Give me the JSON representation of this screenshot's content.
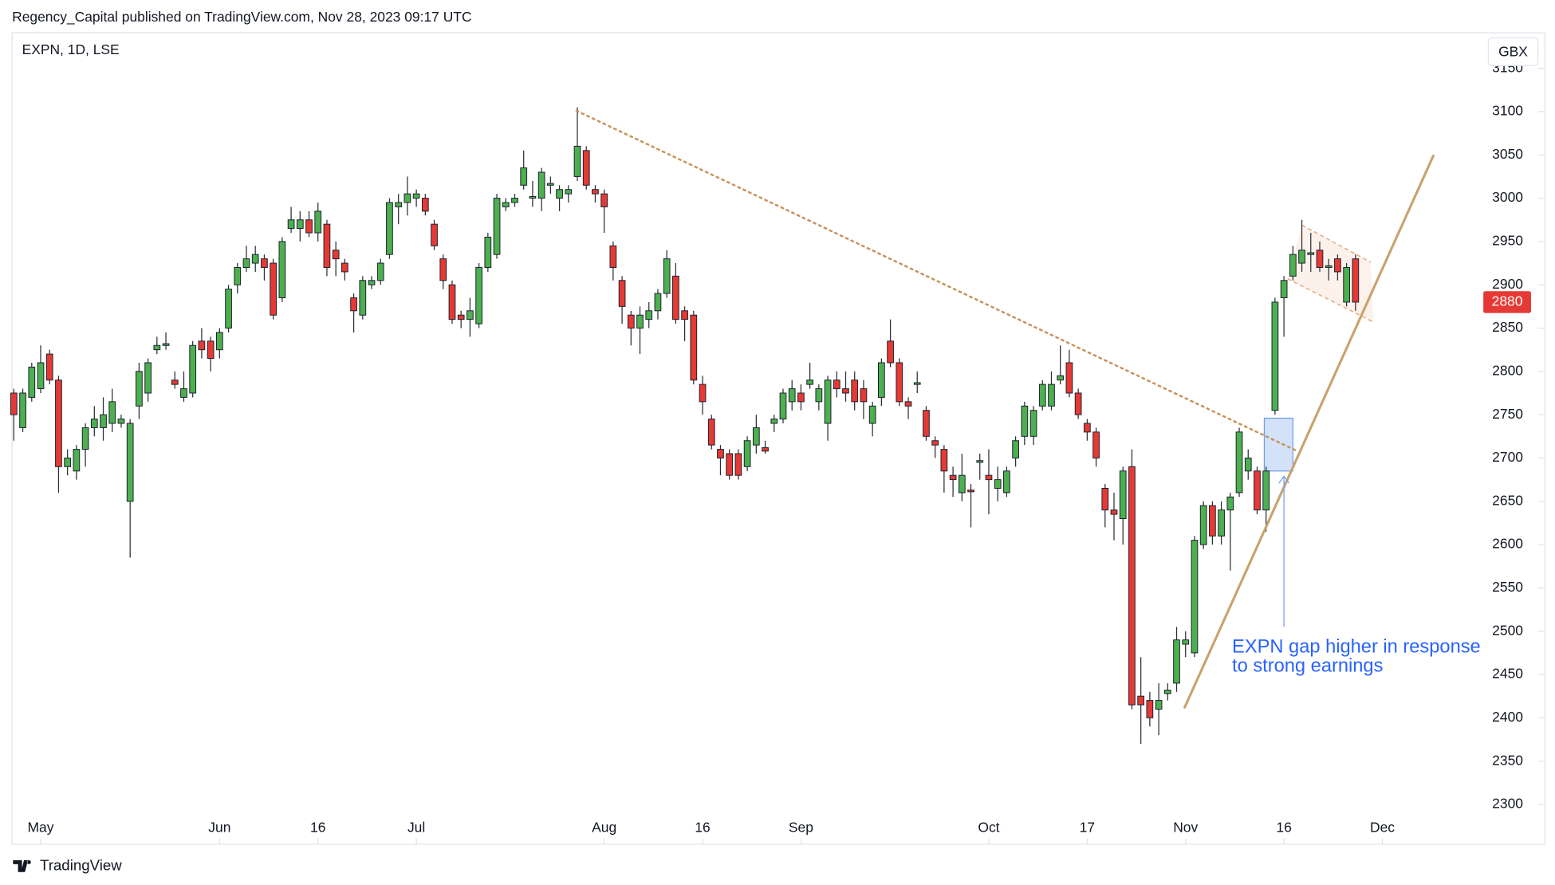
{
  "header": {
    "text": "Regency_Capital published on TradingView.com, Nov 28, 2023 09:17 UTC"
  },
  "chart_data": {
    "type": "candlestick",
    "title": "EXPN, 1D, LSE",
    "currency": "GBX",
    "up_color": "#4caf50",
    "down_color": "#e53935",
    "open": [
      2775,
      2735,
      2770,
      2780,
      2820,
      2790,
      2690,
      2685,
      2710,
      2735,
      2735,
      2740,
      2740,
      2650,
      2760,
      2775,
      2825,
      2830,
      2790,
      2770,
      2775,
      2835,
      2835,
      2825,
      2850,
      2900,
      2920,
      2925,
      2930,
      2925,
      2885,
      2965,
      2965,
      2975,
      2960,
      2970,
      2940,
      2925,
      2885,
      2865,
      2900,
      2905,
      2935,
      2990,
      2995,
      3000,
      3000,
      2970,
      2930,
      2900,
      2865,
      2860,
      2855,
      2920,
      2935,
      2990,
      2995,
      3015,
      3000,
      3000,
      3015,
      3000,
      3005,
      3025,
      3055,
      3010,
      3005,
      2945,
      2905,
      2865,
      2850,
      2860,
      2870,
      2890,
      2910,
      2870,
      2865,
      2785,
      2745,
      2710,
      2705,
      2705,
      2690,
      2715,
      2712,
      2740,
      2745,
      2765,
      2775,
      2785,
      2765,
      2740,
      2790,
      2780,
      2790,
      2780,
      2740,
      2770,
      2835,
      2810,
      2765,
      2785,
      2755,
      2720,
      2710,
      2680,
      2660,
      2663,
      2695,
      2680,
      2665,
      2660,
      2700,
      2725,
      2725,
      2760,
      2760,
      2790,
      2810,
      2775,
      2740,
      2730,
      2665,
      2640,
      2630,
      2690,
      2425,
      2420,
      2410,
      2428,
      2440,
      2485,
      2475,
      2600,
      2645,
      2610,
      2640,
      2660,
      2685,
      2685,
      2640,
      2755,
      2885,
      2910,
      2925,
      2935,
      2940,
      2920,
      2930,
      2880,
      2930
    ],
    "high": [
      2780,
      2780,
      2810,
      2830,
      2825,
      2795,
      2710,
      2715,
      2740,
      2760,
      2770,
      2780,
      2750,
      2745,
      2810,
      2815,
      2840,
      2845,
      2800,
      2800,
      2835,
      2850,
      2840,
      2850,
      2900,
      2925,
      2945,
      2945,
      2935,
      2930,
      2955,
      2990,
      2985,
      2985,
      2995,
      2975,
      2950,
      2930,
      2890,
      2910,
      2910,
      2930,
      3000,
      3005,
      3025,
      3010,
      3005,
      2975,
      2935,
      2905,
      2870,
      2885,
      2925,
      2960,
      3005,
      3000,
      3005,
      3055,
      3020,
      3035,
      3025,
      3015,
      3015,
      3105,
      3060,
      3015,
      3010,
      2950,
      2910,
      2870,
      2875,
      2880,
      2895,
      2940,
      2925,
      2875,
      2870,
      2795,
      2750,
      2715,
      2710,
      2710,
      2725,
      2750,
      2720,
      2750,
      2780,
      2790,
      2785,
      2810,
      2785,
      2795,
      2800,
      2800,
      2800,
      2790,
      2765,
      2815,
      2860,
      2815,
      2770,
      2800,
      2760,
      2725,
      2715,
      2690,
      2705,
      2670,
      2705,
      2710,
      2690,
      2690,
      2725,
      2765,
      2760,
      2790,
      2800,
      2830,
      2825,
      2780,
      2745,
      2735,
      2670,
      2660,
      2690,
      2710,
      2470,
      2430,
      2440,
      2440,
      2505,
      2500,
      2610,
      2650,
      2650,
      2650,
      2660,
      2735,
      2710,
      2690,
      2690,
      2885,
      2910,
      2945,
      2975,
      2960,
      2950,
      2930,
      2935,
      2925,
      2935
    ],
    "low": [
      2720,
      2730,
      2765,
      2775,
      2785,
      2660,
      2680,
      2675,
      2690,
      2725,
      2720,
      2730,
      2735,
      2585,
      2745,
      2765,
      2820,
      2825,
      2780,
      2765,
      2770,
      2815,
      2800,
      2815,
      2845,
      2890,
      2915,
      2915,
      2905,
      2860,
      2880,
      2960,
      2950,
      2955,
      2950,
      2910,
      2910,
      2905,
      2845,
      2860,
      2895,
      2900,
      2930,
      2970,
      2980,
      2990,
      2980,
      2940,
      2895,
      2855,
      2850,
      2840,
      2850,
      2915,
      2930,
      2985,
      2990,
      3010,
      2990,
      2985,
      3005,
      2985,
      2995,
      3020,
      3010,
      2995,
      2960,
      2905,
      2855,
      2830,
      2820,
      2850,
      2860,
      2885,
      2855,
      2835,
      2785,
      2750,
      2710,
      2680,
      2675,
      2675,
      2685,
      2705,
      2705,
      2730,
      2740,
      2755,
      2755,
      2780,
      2755,
      2720,
      2770,
      2765,
      2755,
      2745,
      2725,
      2760,
      2805,
      2760,
      2745,
      2775,
      2720,
      2700,
      2660,
      2655,
      2650,
      2620,
      2675,
      2635,
      2650,
      2655,
      2690,
      2715,
      2715,
      2755,
      2755,
      2785,
      2770,
      2745,
      2720,
      2690,
      2620,
      2605,
      2600,
      2410,
      2370,
      2390,
      2380,
      2420,
      2430,
      2470,
      2470,
      2595,
      2600,
      2600,
      2570,
      2655,
      2675,
      2635,
      2615,
      2750,
      2840,
      2905,
      2915,
      2915,
      2915,
      2905,
      2905,
      2875,
      2870
    ],
    "close": [
      2750,
      2775,
      2805,
      2810,
      2790,
      2690,
      2700,
      2710,
      2735,
      2745,
      2750,
      2765,
      2745,
      2740,
      2800,
      2810,
      2830,
      2832,
      2785,
      2780,
      2830,
      2825,
      2815,
      2845,
      2895,
      2920,
      2930,
      2935,
      2920,
      2865,
      2950,
      2975,
      2975,
      2960,
      2985,
      2920,
      2930,
      2915,
      2870,
      2905,
      2905,
      2925,
      2995,
      2995,
      3005,
      3005,
      2985,
      2945,
      2905,
      2860,
      2860,
      2870,
      2920,
      2955,
      3000,
      2995,
      3000,
      3035,
      3002,
      3030,
      3017,
      3010,
      3010,
      3060,
      3015,
      3005,
      2990,
      2920,
      2875,
      2850,
      2865,
      2870,
      2890,
      2930,
      2860,
      2860,
      2790,
      2765,
      2715,
      2700,
      2680,
      2680,
      2720,
      2735,
      2708,
      2745,
      2775,
      2780,
      2765,
      2790,
      2780,
      2790,
      2780,
      2775,
      2765,
      2765,
      2760,
      2810,
      2810,
      2765,
      2760,
      2787,
      2725,
      2715,
      2685,
      2675,
      2680,
      2661,
      2697,
      2675,
      2675,
      2685,
      2720,
      2760,
      2755,
      2785,
      2785,
      2795,
      2775,
      2750,
      2730,
      2700,
      2640,
      2635,
      2685,
      2415,
      2415,
      2400,
      2420,
      2432,
      2490,
      2490,
      2605,
      2645,
      2610,
      2640,
      2655,
      2730,
      2700,
      2640,
      2685,
      2880,
      2905,
      2935,
      2940,
      2937,
      2920,
      2922,
      2915,
      2920,
      2880
    ],
    "xlim": [
      -0.2,
      168.4
    ],
    "ylim": [
      2254,
      3191
    ],
    "yticks": [
      2300,
      2350,
      2400,
      2450,
      2500,
      2550,
      2600,
      2650,
      2700,
      2750,
      2800,
      2850,
      2900,
      2950,
      3000,
      3050,
      3100,
      3150
    ],
    "xticks": [
      {
        "value": 3,
        "label": "May"
      },
      {
        "value": 23,
        "label": "Jun"
      },
      {
        "value": 34,
        "label": "16"
      },
      {
        "value": 45,
        "label": "Jul"
      },
      {
        "value": 66,
        "label": "Aug"
      },
      {
        "value": 77,
        "label": "16"
      },
      {
        "value": 88,
        "label": "Sep"
      },
      {
        "value": 109,
        "label": "Oct"
      },
      {
        "value": 120,
        "label": "17"
      },
      {
        "value": 131,
        "label": "Nov"
      },
      {
        "value": 142,
        "label": "16"
      },
      {
        "value": 153,
        "label": "Dec"
      }
    ],
    "trendlines": [
      {
        "x": [
          62.9,
          143.5
        ],
        "y": [
          3101,
          2708
        ],
        "color": "#c8925a",
        "style": "dotted"
      },
      {
        "x": [
          130.9,
          158.7
        ],
        "y": [
          2412,
          3049
        ],
        "color": "#c9a26c",
        "style": "solid"
      }
    ],
    "channel": {
      "upper": {
        "x": [
          144.0,
          151.7
        ],
        "y": [
          2969,
          2926
        ]
      },
      "lower": {
        "x": [
          142.4,
          152.0
        ],
        "y": [
          2907,
          2857
        ]
      },
      "color": "#e8a87c"
    },
    "box": {
      "x": [
        139.8,
        143.0
      ],
      "y": [
        2746,
        2685
      ],
      "color": "#6d9eeb"
    },
    "arrow": {
      "x": [
        142.0,
        142.0
      ],
      "y": [
        2505,
        2679
      ],
      "color": "#6d9eeb"
    },
    "note": {
      "x": 136.2,
      "y": 2481,
      "color": "#2962ff",
      "text": [
        "EXPN gap higher in response",
        "to strong earnings"
      ]
    }
  },
  "footer": {
    "brand": "TradingView"
  }
}
